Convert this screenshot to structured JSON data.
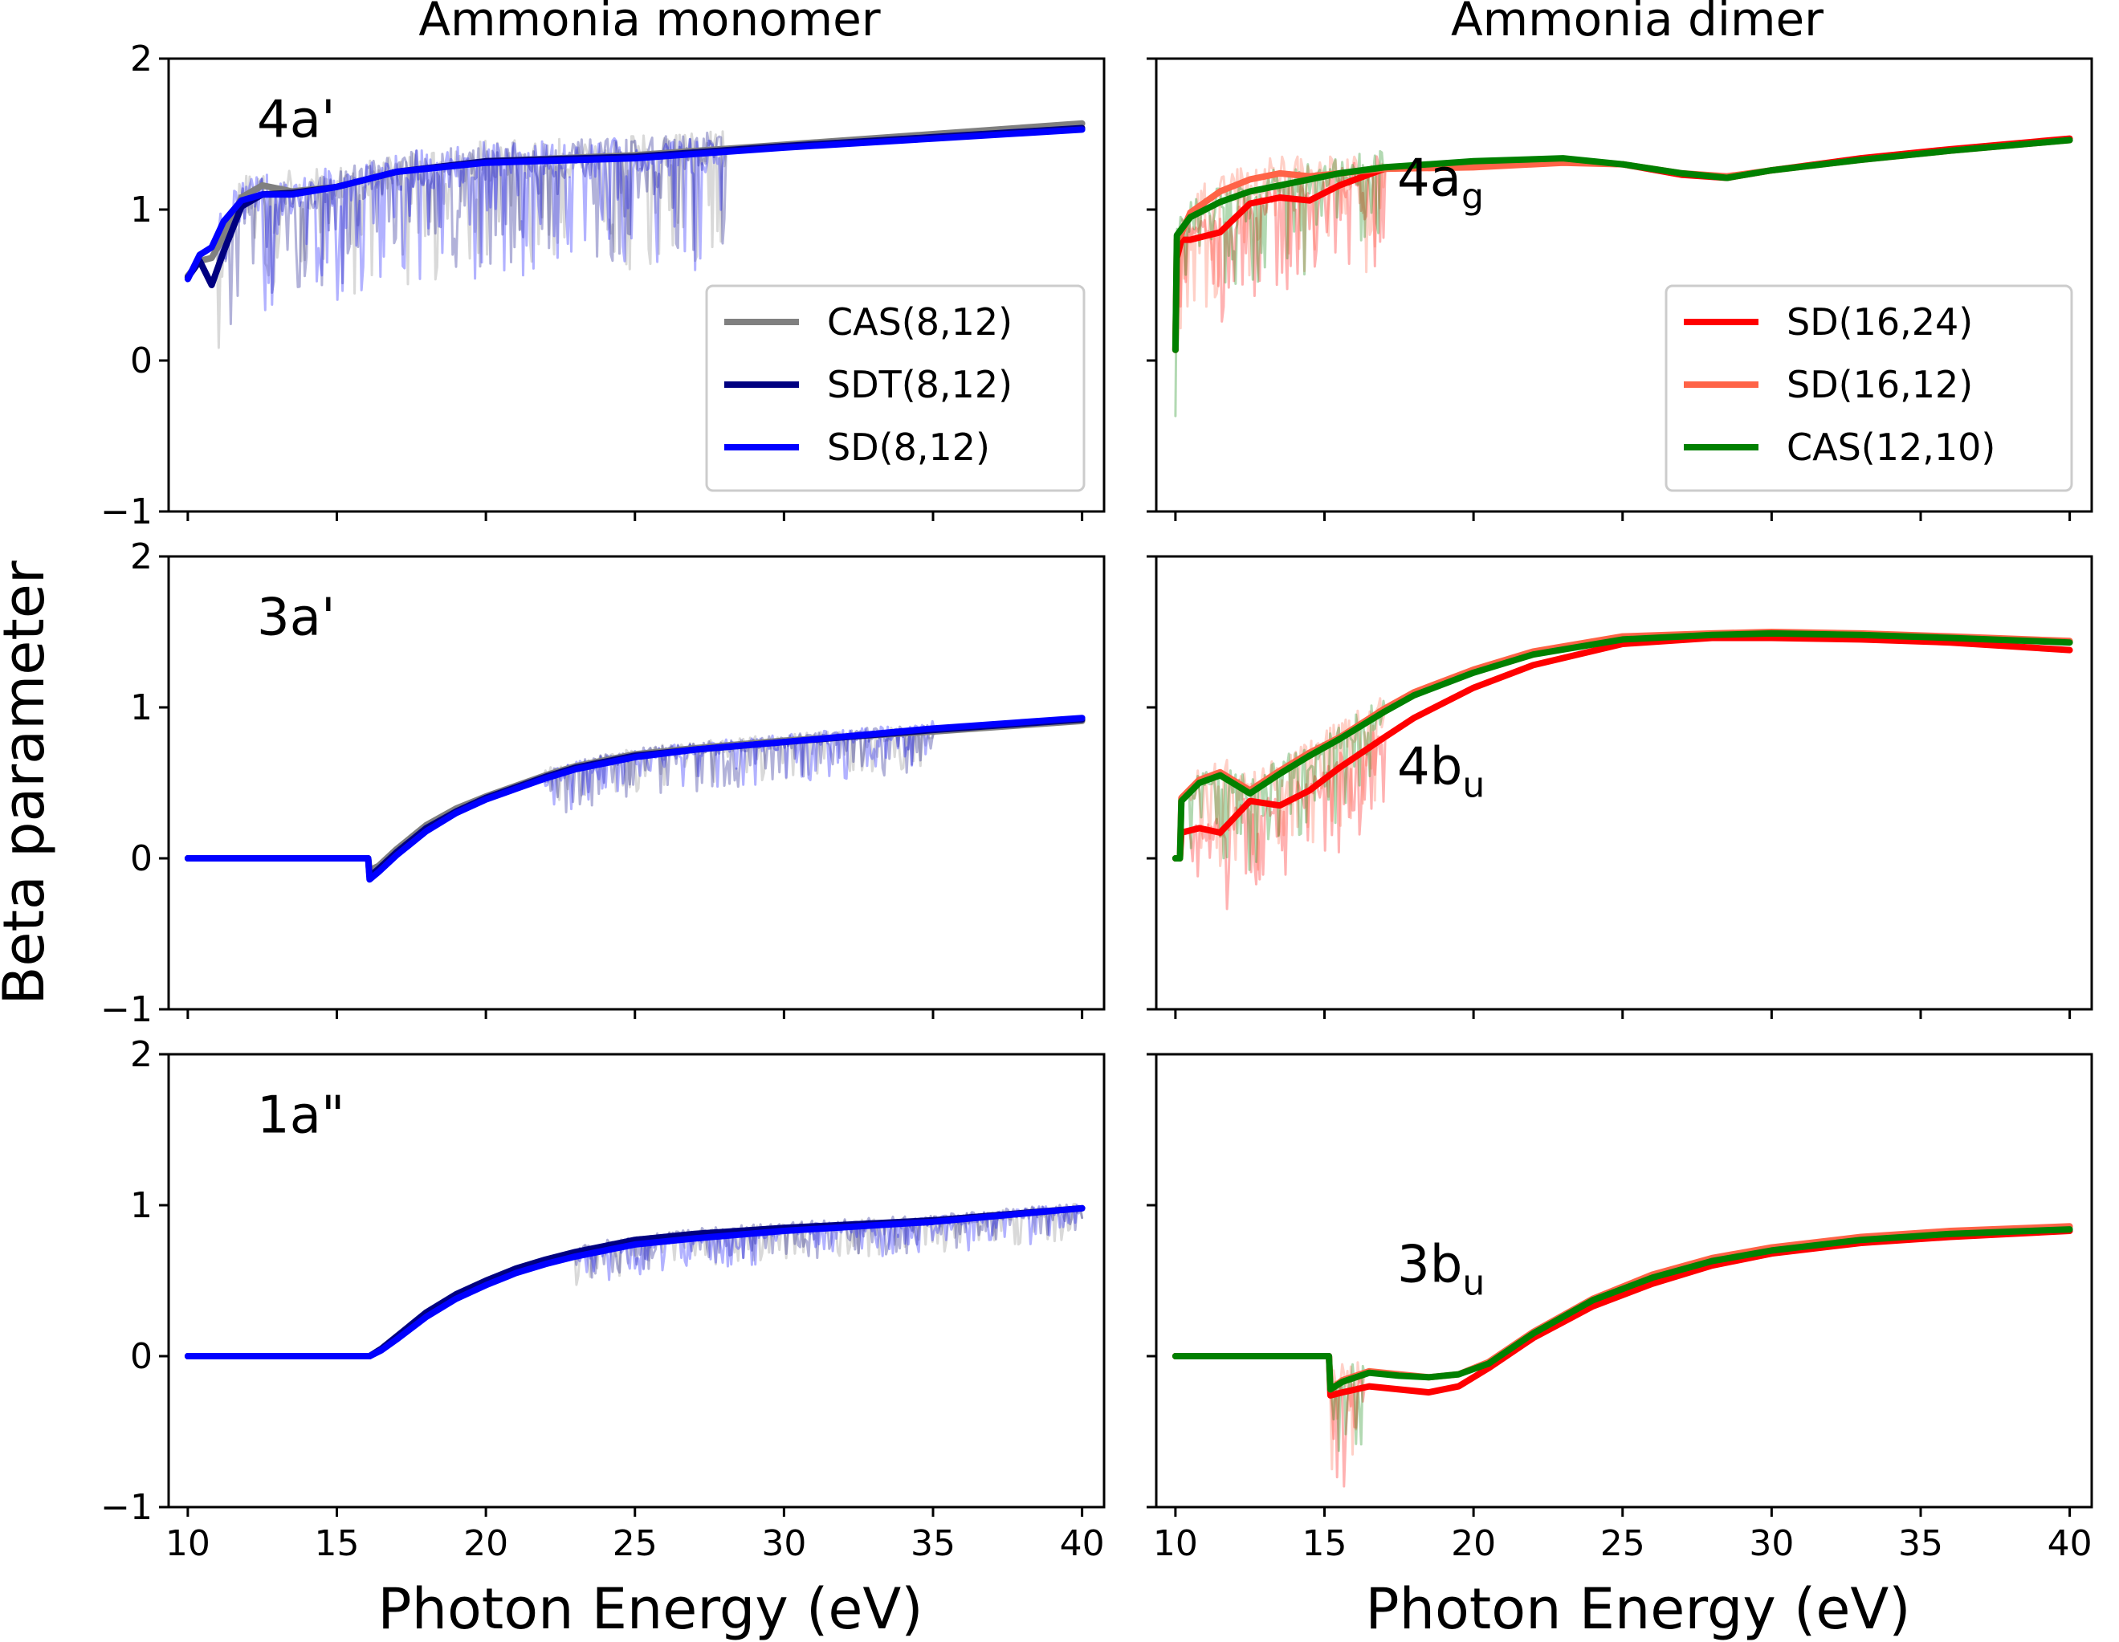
{
  "colors": {
    "cas_8_12": "#808080",
    "sdt_8_12": "#000080",
    "sd_8_12": "#0000ff",
    "sd_16_24": "#ff0000",
    "sd_16_12": "#ff6347",
    "cas_12_10": "#008000"
  },
  "chart_data": [
    {
      "type": "line",
      "column_title": "Ammonia monomer",
      "panel_label": "4a'",
      "xlabel": "",
      "ylabel": "",
      "xlim": [
        10,
        40
      ],
      "ylim": [
        -1,
        2
      ],
      "xticks": [
        10,
        15,
        20,
        25,
        30,
        35,
        40
      ],
      "yticks": [
        -1,
        0,
        1,
        2
      ],
      "legend": {
        "placement": "right-middle",
        "entries": [
          "CAS(8,12)",
          "SDT(8,12)",
          "SD(8,12)"
        ]
      },
      "series": [
        {
          "name": "CAS(8,12)",
          "color_key": "cas_8_12",
          "x": [
            10,
            10.4,
            10.8,
            11.2,
            11.8,
            12.5,
            13.5,
            15,
            17,
            20,
            25,
            30,
            35,
            40
          ],
          "y": [
            0.56,
            0.66,
            0.68,
            0.82,
            1.08,
            1.16,
            1.12,
            1.15,
            1.25,
            1.32,
            1.36,
            1.43,
            1.5,
            1.57
          ],
          "noise": {
            "from": 11,
            "to": 28,
            "amp": 0.55
          }
        },
        {
          "name": "SDT(8,12)",
          "color_key": "sdt_8_12",
          "x": [
            10,
            10.4,
            10.8,
            11.2,
            11.8,
            12.5,
            13.5,
            15,
            17,
            20,
            25,
            30,
            35,
            40
          ],
          "y": [
            0.55,
            0.66,
            0.5,
            0.72,
            1.02,
            1.1,
            1.11,
            1.15,
            1.25,
            1.32,
            1.35,
            1.42,
            1.48,
            1.54
          ],
          "noise": {
            "from": 11,
            "to": 28,
            "amp": 0.5
          }
        },
        {
          "name": "SD(8,12)",
          "color_key": "sd_8_12",
          "x": [
            10,
            10.4,
            10.8,
            11.2,
            11.8,
            12.5,
            13.5,
            15,
            17,
            20,
            25,
            30,
            35,
            40
          ],
          "y": [
            0.54,
            0.7,
            0.75,
            0.92,
            1.06,
            1.1,
            1.1,
            1.15,
            1.25,
            1.31,
            1.34,
            1.41,
            1.47,
            1.53
          ],
          "noise": {
            "from": 11,
            "to": 28,
            "amp": 0.55
          }
        }
      ]
    },
    {
      "type": "line",
      "column_title": "Ammonia dimer",
      "panel_label": "4a_g",
      "panel_label_main": "4a",
      "panel_label_sub": "g",
      "xlabel": "",
      "ylabel": "",
      "xlim": [
        10,
        40
      ],
      "ylim": [
        -1,
        2
      ],
      "xticks": [
        10,
        15,
        20,
        25,
        30,
        35,
        40
      ],
      "yticks": [
        -1,
        0,
        1,
        2
      ],
      "legend": {
        "placement": "right-middle",
        "entries": [
          "SD(16,24)",
          "SD(16,12)",
          "CAS(12,10)"
        ]
      },
      "series": [
        {
          "name": "SD(16,24)",
          "color_key": "sd_16_24",
          "x": [
            10,
            10.05,
            10.2,
            10.5,
            11.5,
            12.5,
            13.5,
            14.5,
            15.5,
            17,
            20,
            23,
            25,
            27,
            28.5,
            30,
            33,
            36,
            40
          ],
          "y": [
            0.07,
            0.68,
            0.8,
            0.8,
            0.85,
            1.04,
            1.08,
            1.06,
            1.16,
            1.27,
            1.3,
            1.32,
            1.3,
            1.23,
            1.21,
            1.26,
            1.34,
            1.4,
            1.47
          ],
          "noise": {
            "from": 10,
            "to": 17,
            "amp": 0.45
          }
        },
        {
          "name": "SD(16,12)",
          "color_key": "sd_16_12",
          "x": [
            10,
            10.05,
            10.2,
            10.5,
            11.5,
            12.5,
            13.5,
            14.5,
            15.5,
            17,
            20,
            23,
            25,
            27,
            28.5,
            30,
            33,
            36,
            40
          ],
          "y": [
            0.07,
            0.8,
            0.84,
            0.98,
            1.12,
            1.2,
            1.24,
            1.22,
            1.24,
            1.27,
            1.28,
            1.31,
            1.3,
            1.24,
            1.22,
            1.26,
            1.33,
            1.39,
            1.46
          ],
          "noise": {
            "from": 10,
            "to": 17,
            "amp": 0.5
          }
        },
        {
          "name": "CAS(12,10)",
          "color_key": "cas_12_10",
          "x": [
            10,
            10.05,
            10.2,
            10.5,
            11.5,
            12.5,
            13.5,
            14.5,
            15.5,
            17,
            20,
            23,
            25,
            27,
            28.5,
            30,
            33,
            36,
            40
          ],
          "y": [
            0.07,
            0.83,
            0.87,
            0.95,
            1.05,
            1.12,
            1.16,
            1.2,
            1.24,
            1.28,
            1.32,
            1.34,
            1.3,
            1.24,
            1.21,
            1.26,
            1.33,
            1.39,
            1.46
          ],
          "noise": {
            "from": 10,
            "to": 17,
            "amp": 0.45
          }
        }
      ]
    },
    {
      "type": "line",
      "panel_label": "3a'",
      "xlabel": "",
      "ylabel": "",
      "xlim": [
        10,
        40
      ],
      "ylim": [
        -1,
        2
      ],
      "xticks": [
        10,
        15,
        20,
        25,
        30,
        35,
        40
      ],
      "yticks": [
        -1,
        0,
        1,
        2
      ],
      "series": [
        {
          "name": "CAS(8,12)",
          "color_key": "cas_8_12",
          "x": [
            10,
            16.05,
            16.1,
            16.4,
            17,
            18,
            19,
            20,
            21,
            22,
            23,
            24,
            25,
            27,
            30,
            35,
            40
          ],
          "y": [
            0,
            0,
            -0.08,
            -0.05,
            0.06,
            0.22,
            0.33,
            0.41,
            0.48,
            0.55,
            0.61,
            0.65,
            0.69,
            0.73,
            0.78,
            0.84,
            0.91
          ],
          "noise": {
            "from": 22,
            "to": 35,
            "amp": 0.18
          }
        },
        {
          "name": "SDT(8,12)",
          "color_key": "sdt_8_12",
          "x": [
            10,
            16.05,
            16.1,
            16.4,
            17,
            18,
            19,
            20,
            21,
            22,
            23,
            24,
            25,
            27,
            30,
            35,
            40
          ],
          "y": [
            0,
            0,
            -0.12,
            -0.07,
            0.04,
            0.2,
            0.31,
            0.4,
            0.47,
            0.54,
            0.6,
            0.64,
            0.68,
            0.72,
            0.77,
            0.85,
            0.92
          ],
          "noise": {
            "from": 22,
            "to": 35,
            "amp": 0.2
          }
        },
        {
          "name": "SD(8,12)",
          "color_key": "sd_8_12",
          "x": [
            10,
            16.05,
            16.1,
            16.4,
            17,
            18,
            19,
            20,
            21,
            22,
            23,
            24,
            25,
            27,
            30,
            35,
            40
          ],
          "y": [
            0,
            0,
            -0.14,
            -0.09,
            0.02,
            0.18,
            0.3,
            0.39,
            0.46,
            0.53,
            0.59,
            0.63,
            0.67,
            0.72,
            0.77,
            0.86,
            0.93
          ],
          "noise": {
            "from": 22,
            "to": 35,
            "amp": 0.2
          }
        }
      ]
    },
    {
      "type": "line",
      "panel_label": "4b_u",
      "panel_label_main": "4b",
      "panel_label_sub": "u",
      "xlabel": "",
      "ylabel": "",
      "xlim": [
        10,
        40
      ],
      "ylim": [
        -1,
        2
      ],
      "xticks": [
        10,
        15,
        20,
        25,
        30,
        35,
        40
      ],
      "yticks": [
        -1,
        0,
        1,
        2
      ],
      "series": [
        {
          "name": "SD(16,24)",
          "color_key": "sd_16_24",
          "x": [
            10,
            10.15,
            10.2,
            10.8,
            11.5,
            12.5,
            13.5,
            14.5,
            15.5,
            17,
            18,
            20,
            22,
            25,
            28,
            30,
            33,
            36,
            40
          ],
          "y": [
            0,
            0,
            0.17,
            0.2,
            0.17,
            0.38,
            0.35,
            0.45,
            0.6,
            0.8,
            0.93,
            1.13,
            1.28,
            1.42,
            1.46,
            1.46,
            1.45,
            1.43,
            1.38
          ],
          "noise": {
            "from": 10.5,
            "to": 17,
            "amp": 0.4
          }
        },
        {
          "name": "SD(16,12)",
          "color_key": "sd_16_12",
          "x": [
            10,
            10.15,
            10.2,
            10.8,
            11.5,
            12.5,
            13.5,
            14.5,
            15.5,
            17,
            18,
            20,
            22,
            25,
            28,
            30,
            33,
            36,
            40
          ],
          "y": [
            0,
            0,
            0.4,
            0.52,
            0.57,
            0.45,
            0.58,
            0.7,
            0.8,
            0.99,
            1.1,
            1.25,
            1.37,
            1.47,
            1.49,
            1.5,
            1.49,
            1.47,
            1.44
          ],
          "noise": {
            "from": 10.5,
            "to": 17,
            "amp": 0.45
          }
        },
        {
          "name": "CAS(12,10)",
          "color_key": "cas_12_10",
          "x": [
            10,
            10.15,
            10.2,
            10.8,
            11.5,
            12.5,
            13.5,
            14.5,
            15.5,
            17,
            18,
            20,
            22,
            25,
            28,
            30,
            33,
            36,
            40
          ],
          "y": [
            0,
            0,
            0.38,
            0.5,
            0.55,
            0.43,
            0.56,
            0.68,
            0.79,
            0.97,
            1.08,
            1.23,
            1.35,
            1.45,
            1.48,
            1.49,
            1.48,
            1.46,
            1.43
          ],
          "noise": {
            "from": 10.5,
            "to": 17,
            "amp": 0.4
          }
        }
      ]
    },
    {
      "type": "line",
      "panel_label": "1a\"",
      "xlabel": "Photon Energy (eV)",
      "ylabel": "",
      "xlim": [
        10,
        40
      ],
      "ylim": [
        -1,
        2
      ],
      "xticks": [
        10,
        15,
        20,
        25,
        30,
        35,
        40
      ],
      "yticks": [
        -1,
        0,
        1,
        2
      ],
      "series": [
        {
          "name": "CAS(8,12)",
          "color_key": "cas_8_12",
          "x": [
            10,
            16.1,
            16.5,
            17,
            18,
            19,
            20,
            21,
            22,
            23,
            24,
            25,
            27,
            30,
            35,
            40
          ],
          "y": [
            0,
            0,
            0.05,
            0.13,
            0.28,
            0.4,
            0.49,
            0.57,
            0.63,
            0.68,
            0.72,
            0.76,
            0.8,
            0.84,
            0.89,
            0.98
          ],
          "noise": {
            "from": 23,
            "to": 40,
            "amp": 0.15
          }
        },
        {
          "name": "SDT(8,12)",
          "color_key": "sdt_8_12",
          "x": [
            10,
            16.1,
            16.5,
            17,
            18,
            19,
            20,
            21,
            22,
            23,
            24,
            25,
            27,
            30,
            35,
            40
          ],
          "y": [
            0,
            0,
            0.05,
            0.13,
            0.29,
            0.41,
            0.5,
            0.58,
            0.64,
            0.69,
            0.73,
            0.77,
            0.81,
            0.85,
            0.9,
            0.98
          ],
          "noise": {
            "from": 23,
            "to": 40,
            "amp": 0.15
          }
        },
        {
          "name": "SD(8,12)",
          "color_key": "sd_8_12",
          "x": [
            10,
            16.1,
            16.5,
            17,
            18,
            19,
            20,
            21,
            22,
            23,
            24,
            25,
            27,
            30,
            35,
            40
          ],
          "y": [
            0,
            0,
            0.04,
            0.11,
            0.26,
            0.38,
            0.47,
            0.55,
            0.61,
            0.66,
            0.7,
            0.74,
            0.78,
            0.83,
            0.89,
            0.98
          ],
          "noise": {
            "from": 23,
            "to": 40,
            "amp": 0.15
          }
        }
      ]
    },
    {
      "type": "line",
      "panel_label": "3b_u",
      "panel_label_main": "3b",
      "panel_label_sub": "u",
      "xlabel": "Photon Energy (eV)",
      "ylabel": "",
      "xlim": [
        10,
        40
      ],
      "ylim": [
        -1,
        2
      ],
      "xticks": [
        10,
        15,
        20,
        25,
        30,
        35,
        40
      ],
      "yticks": [
        -1,
        0,
        1,
        2
      ],
      "series": [
        {
          "name": "SD(16,24)",
          "color_key": "sd_16_24",
          "x": [
            10,
            15.15,
            15.2,
            15.6,
            16.5,
            17.5,
            18.5,
            19.5,
            20.5,
            22,
            24,
            26,
            28,
            30,
            33,
            36,
            40
          ],
          "y": [
            0,
            0,
            -0.26,
            -0.24,
            -0.2,
            -0.22,
            -0.24,
            -0.2,
            -0.08,
            0.12,
            0.33,
            0.48,
            0.6,
            0.68,
            0.75,
            0.79,
            0.83
          ],
          "noise": {
            "from": 15.2,
            "to": 16.3,
            "amp": 0.45
          }
        },
        {
          "name": "SD(16,12)",
          "color_key": "sd_16_12",
          "x": [
            10,
            15.15,
            15.2,
            15.6,
            16.5,
            17.5,
            18.5,
            19.5,
            20.5,
            22,
            24,
            26,
            28,
            30,
            33,
            36,
            40
          ],
          "y": [
            0,
            0,
            -0.22,
            -0.16,
            -0.1,
            -0.12,
            -0.14,
            -0.12,
            -0.04,
            0.16,
            0.38,
            0.54,
            0.65,
            0.72,
            0.79,
            0.83,
            0.86
          ],
          "noise": {
            "from": 15.2,
            "to": 16.3,
            "amp": 0.45
          }
        },
        {
          "name": "CAS(12,10)",
          "color_key": "cas_12_10",
          "x": [
            10,
            15.15,
            15.2,
            15.6,
            16.5,
            17.5,
            18.5,
            19.5,
            20.5,
            22,
            24,
            26,
            28,
            30,
            33,
            36,
            40
          ],
          "y": [
            0,
            0,
            -0.22,
            -0.17,
            -0.11,
            -0.13,
            -0.14,
            -0.12,
            -0.05,
            0.15,
            0.37,
            0.52,
            0.63,
            0.7,
            0.77,
            0.81,
            0.84
          ],
          "noise": {
            "from": 15.2,
            "to": 16.3,
            "amp": 0.45
          }
        }
      ]
    }
  ],
  "figure": {
    "ylabel": "Beta parameter",
    "xlabel_left": "Photon Energy (eV)",
    "xlabel_right": "Photon Energy (eV)",
    "column_title_left": "Ammonia monomer",
    "column_title_right": "Ammonia dimer"
  }
}
